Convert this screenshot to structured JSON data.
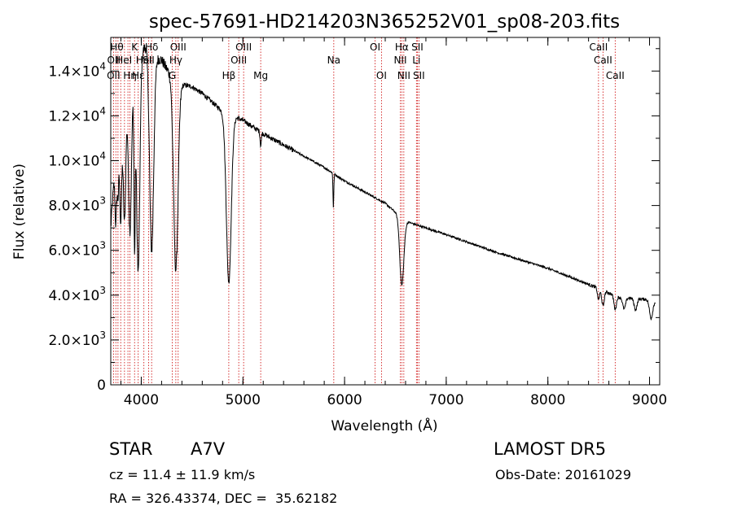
{
  "chart_data": {
    "type": "line",
    "title": "spec-57691-HD214203N365252V01_sp08-203.fits",
    "xlabel": "Wavelength (Å)",
    "ylabel": "Flux (relative)",
    "xlim": [
      3700,
      9100
    ],
    "ylim": [
      0,
      15500
    ],
    "x_ticks": [
      4000,
      5000,
      6000,
      7000,
      8000,
      9000
    ],
    "y_ticks": [
      {
        "value": 0,
        "mant": "0",
        "exp": ""
      },
      {
        "value": 2000,
        "mant": "2.0×10",
        "exp": "3"
      },
      {
        "value": 4000,
        "mant": "4.0×10",
        "exp": "3"
      },
      {
        "value": 6000,
        "mant": "6.0×10",
        "exp": "3"
      },
      {
        "value": 8000,
        "mant": "8.0×10",
        "exp": "3"
      },
      {
        "value": 10000,
        "mant": "1.0×10",
        "exp": "4"
      },
      {
        "value": 12000,
        "mant": "1.2×10",
        "exp": "4"
      },
      {
        "value": 14000,
        "mant": "1.4×10",
        "exp": "4"
      }
    ],
    "grid": false,
    "continuum": [
      [
        3700,
        7000
      ],
      [
        3730,
        9000
      ],
      [
        3770,
        11500
      ],
      [
        3830,
        12200
      ],
      [
        3900,
        13000
      ],
      [
        3970,
        14000
      ],
      [
        4000,
        14800
      ],
      [
        4050,
        15200
      ],
      [
        4100,
        15000
      ],
      [
        4150,
        14600
      ],
      [
        4200,
        14500
      ],
      [
        4250,
        14100
      ],
      [
        4300,
        13800
      ],
      [
        4400,
        13400
      ],
      [
        4500,
        13300
      ],
      [
        4600,
        13000
      ],
      [
        4700,
        12600
      ],
      [
        4800,
        12200
      ],
      [
        4900,
        12000
      ],
      [
        5000,
        11800
      ],
      [
        5200,
        11200
      ],
      [
        5400,
        10700
      ],
      [
        5600,
        10200
      ],
      [
        5800,
        9700
      ],
      [
        6000,
        9100
      ],
      [
        6200,
        8600
      ],
      [
        6400,
        8100
      ],
      [
        6600,
        7300
      ],
      [
        6800,
        7000
      ],
      [
        7000,
        6700
      ],
      [
        7500,
        5900
      ],
      [
        8000,
        5200
      ],
      [
        8500,
        4300
      ],
      [
        8700,
        3900
      ],
      [
        9000,
        3800
      ],
      [
        9060,
        3700
      ]
    ],
    "absorption_lines": [
      {
        "center": 3750,
        "depth": 3000,
        "width": 8
      },
      {
        "center": 3771,
        "depth": 3000,
        "width": 8
      },
      {
        "center": 3798,
        "depth": 4500,
        "width": 10
      },
      {
        "center": 3835,
        "depth": 5000,
        "width": 12
      },
      {
        "center": 3889,
        "depth": 6000,
        "width": 14
      },
      {
        "center": 3934,
        "depth": 7000,
        "width": 6
      },
      {
        "center": 3970,
        "depth": 9000,
        "width": 16
      },
      {
        "center": 4102,
        "depth": 9000,
        "width": 20
      },
      {
        "center": 4340,
        "depth": 8500,
        "width": 22
      },
      {
        "center": 4861,
        "depth": 7500,
        "width": 24
      },
      {
        "center": 5175,
        "depth": 600,
        "width": 6
      },
      {
        "center": 5890,
        "depth": 1500,
        "width": 4
      },
      {
        "center": 6563,
        "depth": 3000,
        "width": 20
      },
      {
        "center": 8498,
        "depth": 500,
        "width": 10
      },
      {
        "center": 8542,
        "depth": 700,
        "width": 12
      },
      {
        "center": 8662,
        "depth": 600,
        "width": 12
      },
      {
        "center": 8750,
        "depth": 500,
        "width": 14
      },
      {
        "center": 8863,
        "depth": 500,
        "width": 14
      },
      {
        "center": 9015,
        "depth": 800,
        "width": 16
      }
    ],
    "line_markers": [
      {
        "x": 3727,
        "label": "OII",
        "row": 3
      },
      {
        "x": 3750,
        "label": "",
        "row": 0
      },
      {
        "x": 3771,
        "label": "",
        "row": 0
      },
      {
        "x": 3798,
        "label": "",
        "row": 0
      },
      {
        "x": 3835,
        "label": "",
        "row": 0
      },
      {
        "x": 3869,
        "label": "",
        "row": 0
      },
      {
        "x": 3889,
        "label": "Hη",
        "row": 3
      },
      {
        "x": 3934,
        "label": "K",
        "row": 1
      },
      {
        "x": 3970,
        "label": "Hε",
        "row": 3
      },
      {
        "x": 4026,
        "label": "HeI",
        "row": 2
      },
      {
        "x": 4072,
        "label": "SII",
        "row": 2
      },
      {
        "x": 4102,
        "label": "Hδ",
        "row": 1
      },
      {
        "x": 4305,
        "label": "G",
        "row": 3
      },
      {
        "x": 4340,
        "label": "Hγ",
        "row": 2
      },
      {
        "x": 4363,
        "label": "OIII",
        "row": 1
      },
      {
        "x": 4861,
        "label": "Hβ",
        "row": 3
      },
      {
        "x": 4959,
        "label": "OIII",
        "row": 2
      },
      {
        "x": 5007,
        "label": "OIII",
        "row": 1
      },
      {
        "x": 5175,
        "label": "Mg",
        "row": 3
      },
      {
        "x": 5894,
        "label": "Na",
        "row": 2
      },
      {
        "x": 6300,
        "label": "OI",
        "row": 1
      },
      {
        "x": 6363,
        "label": "OI",
        "row": 3
      },
      {
        "x": 6548,
        "label": "NII",
        "row": 2
      },
      {
        "x": 6563,
        "label": "Hα",
        "row": 1
      },
      {
        "x": 6583,
        "label": "NII",
        "row": 3
      },
      {
        "x": 6707,
        "label": "Li",
        "row": 2
      },
      {
        "x": 6716,
        "label": "SII",
        "row": 1
      },
      {
        "x": 6731,
        "label": "SII",
        "row": 3
      },
      {
        "x": 8498,
        "label": "CaII",
        "row": 1
      },
      {
        "x": 8542,
        "label": "CaII",
        "row": 2
      },
      {
        "x": 8662,
        "label": "CaII",
        "row": 3
      }
    ],
    "row_labels_extra": [
      {
        "x": 3760,
        "label": "Hθ",
        "row": 1
      },
      {
        "x": 3730,
        "label": "OII",
        "row": 2
      },
      {
        "x": 3830,
        "label": "HeI",
        "row": 2
      }
    ]
  },
  "info": {
    "object_type": "STAR",
    "subclass": "A7V",
    "redshift": "cz = 11.4 ± 11.9 km/s",
    "coords": "RA = 326.43374, DEC =  35.62182",
    "survey": "LAMOST DR5",
    "obs_date": "Obs-Date: 20161029"
  },
  "colors": {
    "spectrum": "#000000",
    "marker": "#cc0000",
    "axis": "#000000"
  }
}
